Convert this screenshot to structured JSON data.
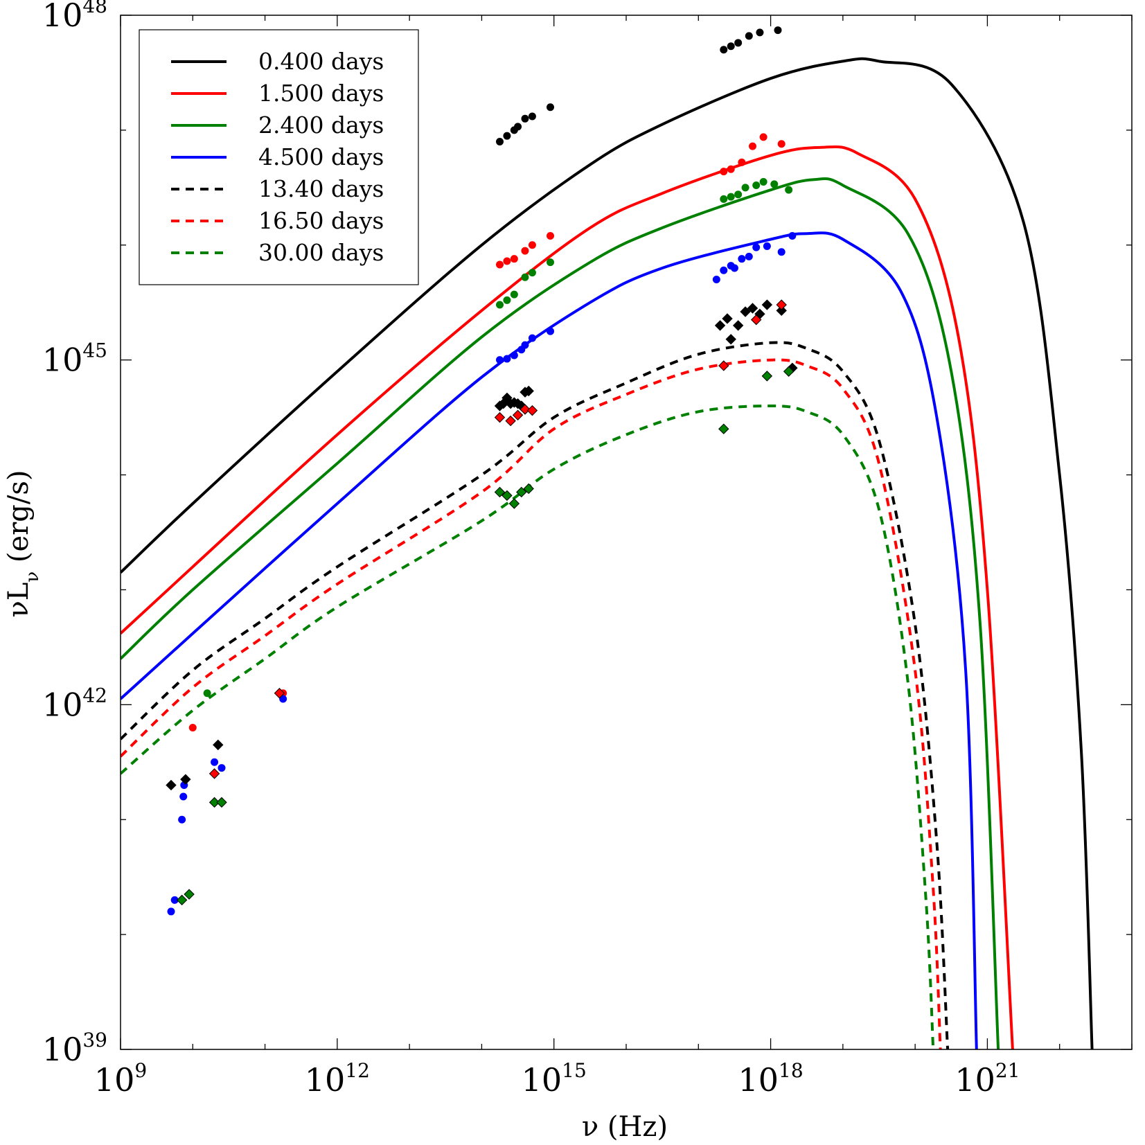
{
  "chart_data": {
    "type": "line",
    "title": "",
    "xlabel": "ν (Hz)",
    "ylabel": "νL_ν (erg/s)",
    "xscale": "log",
    "yscale": "log",
    "xlim": [
      1000000000.0,
      1e+23
    ],
    "ylim": [
      1e+39,
      1e+48
    ],
    "x_ticks": [
      {
        "base": "10",
        "exp": "9",
        "value": 1000000000.0
      },
      {
        "base": "10",
        "exp": "12",
        "value": 1000000000000.0
      },
      {
        "base": "10",
        "exp": "15",
        "value": 1000000000000000.0
      },
      {
        "base": "10",
        "exp": "18",
        "value": 1e+18
      },
      {
        "base": "10",
        "exp": "21",
        "value": 1e+21
      }
    ],
    "y_ticks": [
      {
        "base": "10",
        "exp": "39",
        "value": 1e+39
      },
      {
        "base": "10",
        "exp": "42",
        "value": 1e+42
      },
      {
        "base": "10",
        "exp": "45",
        "value": 1e+45
      },
      {
        "base": "10",
        "exp": "48",
        "value": 1e+48
      }
    ],
    "grid": false,
    "legend_position": "top-left",
    "series": [
      {
        "name": "0.400 days",
        "color": "#000000",
        "dash": "solid",
        "model_log": [
          [
            9.0,
            43.15
          ],
          [
            10.0,
            43.75
          ],
          [
            12.0,
            44.9
          ],
          [
            14.0,
            46.0
          ],
          [
            15.5,
            46.7
          ],
          [
            16.5,
            47.05
          ],
          [
            18.0,
            47.45
          ],
          [
            19.0,
            47.6
          ],
          [
            19.5,
            47.6
          ],
          [
            20.5,
            47.4
          ],
          [
            21.5,
            46.2
          ],
          [
            22.0,
            44.0
          ],
          [
            22.3,
            41.6
          ],
          [
            22.45,
            39.0
          ]
        ],
        "points_log": [
          [
            14.25,
            46.9
          ],
          [
            14.35,
            46.95
          ],
          [
            14.45,
            47.0
          ],
          [
            14.5,
            47.03
          ],
          [
            14.6,
            47.1
          ],
          [
            14.7,
            47.12
          ],
          [
            14.95,
            47.2
          ],
          [
            17.35,
            47.7
          ],
          [
            17.45,
            47.73
          ],
          [
            17.55,
            47.76
          ],
          [
            17.7,
            47.82
          ],
          [
            17.85,
            47.85
          ],
          [
            18.1,
            47.87
          ]
        ],
        "point_shape": "circle"
      },
      {
        "name": "1.500 days",
        "color": "#ff0000",
        "dash": "solid",
        "model_log": [
          [
            9.0,
            42.62
          ],
          [
            10.0,
            43.2
          ],
          [
            12.0,
            44.35
          ],
          [
            14.0,
            45.43
          ],
          [
            15.5,
            46.15
          ],
          [
            16.5,
            46.45
          ],
          [
            18.0,
            46.78
          ],
          [
            18.7,
            46.85
          ],
          [
            19.2,
            46.8
          ],
          [
            20.0,
            46.4
          ],
          [
            20.6,
            45.2
          ],
          [
            21.0,
            43.0
          ],
          [
            21.35,
            39.0
          ]
        ],
        "points_log": [
          [
            14.25,
            45.83
          ],
          [
            14.35,
            45.86
          ],
          [
            14.45,
            45.88
          ],
          [
            14.6,
            45.95
          ],
          [
            14.7,
            46.0
          ],
          [
            14.95,
            46.08
          ],
          [
            17.35,
            46.64
          ],
          [
            17.45,
            46.66
          ],
          [
            17.6,
            46.72
          ],
          [
            17.75,
            46.86
          ],
          [
            17.9,
            46.94
          ],
          [
            18.15,
            46.88
          ],
          [
            10.0,
            41.8
          ],
          [
            11.25,
            42.1
          ]
        ],
        "point_shape": "circle"
      },
      {
        "name": "2.400 days",
        "color": "#008000",
        "dash": "solid",
        "model_log": [
          [
            9.0,
            42.4
          ],
          [
            10.0,
            43.0
          ],
          [
            12.0,
            44.1
          ],
          [
            14.0,
            45.2
          ],
          [
            15.5,
            45.85
          ],
          [
            16.5,
            46.15
          ],
          [
            18.0,
            46.48
          ],
          [
            18.6,
            46.57
          ],
          [
            19.0,
            46.52
          ],
          [
            19.9,
            46.1
          ],
          [
            20.5,
            44.9
          ],
          [
            20.9,
            42.7
          ],
          [
            21.15,
            39.0
          ]
        ],
        "points_log": [
          [
            14.25,
            45.48
          ],
          [
            14.35,
            45.52
          ],
          [
            14.45,
            45.57
          ],
          [
            14.6,
            45.72
          ],
          [
            14.7,
            45.76
          ],
          [
            14.95,
            45.85
          ],
          [
            17.35,
            46.4
          ],
          [
            17.45,
            46.42
          ],
          [
            17.55,
            46.44
          ],
          [
            17.65,
            46.5
          ],
          [
            17.8,
            46.52
          ],
          [
            17.9,
            46.55
          ],
          [
            18.05,
            46.53
          ],
          [
            18.25,
            46.48
          ],
          [
            10.2,
            42.1
          ]
        ],
        "point_shape": "circle"
      },
      {
        "name": "4.500 days",
        "color": "#0000ff",
        "dash": "solid",
        "model_log": [
          [
            9.0,
            42.05
          ],
          [
            10.0,
            42.62
          ],
          [
            12.0,
            43.75
          ],
          [
            14.0,
            44.85
          ],
          [
            15.5,
            45.5
          ],
          [
            16.5,
            45.8
          ],
          [
            18.0,
            46.05
          ],
          [
            18.5,
            46.1
          ],
          [
            19.0,
            46.05
          ],
          [
            19.8,
            45.6
          ],
          [
            20.3,
            44.5
          ],
          [
            20.7,
            42.3
          ],
          [
            20.85,
            39.0
          ]
        ],
        "points_log": [
          [
            9.7,
            40.2
          ],
          [
            9.75,
            40.3
          ],
          [
            9.85,
            41.0
          ],
          [
            9.87,
            41.2
          ],
          [
            9.88,
            41.3
          ],
          [
            10.3,
            41.5
          ],
          [
            10.4,
            41.45
          ],
          [
            14.25,
            45.0
          ],
          [
            14.35,
            45.01
          ],
          [
            14.45,
            45.04
          ],
          [
            14.55,
            45.09
          ],
          [
            14.6,
            45.13
          ],
          [
            14.7,
            45.19
          ],
          [
            14.95,
            45.25
          ],
          [
            17.25,
            45.7
          ],
          [
            17.35,
            45.78
          ],
          [
            17.45,
            45.82
          ],
          [
            17.5,
            45.8
          ],
          [
            17.6,
            45.88
          ],
          [
            17.7,
            45.9
          ],
          [
            17.8,
            45.98
          ],
          [
            17.95,
            45.99
          ],
          [
            18.15,
            45.94
          ],
          [
            18.3,
            46.08
          ],
          [
            11.25,
            42.05
          ]
        ],
        "point_shape": "circle"
      },
      {
        "name": "13.40 days",
        "color": "#000000",
        "dash": "dashed",
        "model_log": [
          [
            9.0,
            41.7
          ],
          [
            10.0,
            42.3
          ],
          [
            11.0,
            42.75
          ],
          [
            12.0,
            43.2
          ],
          [
            14.0,
            44.0
          ],
          [
            15.0,
            44.5
          ],
          [
            16.0,
            44.8
          ],
          [
            17.0,
            45.05
          ],
          [
            18.0,
            45.15
          ],
          [
            18.5,
            45.1
          ],
          [
            19.0,
            44.9
          ],
          [
            19.5,
            44.3
          ],
          [
            20.0,
            42.7
          ],
          [
            20.3,
            40.8
          ],
          [
            20.45,
            39.0
          ]
        ],
        "points_log": [
          [
            9.7,
            41.3
          ],
          [
            9.9,
            41.35
          ],
          [
            10.35,
            41.65
          ],
          [
            14.25,
            44.6
          ],
          [
            14.3,
            44.62
          ],
          [
            14.35,
            44.67
          ],
          [
            14.4,
            44.62
          ],
          [
            14.45,
            44.63
          ],
          [
            14.5,
            44.62
          ],
          [
            14.55,
            44.6
          ],
          [
            14.6,
            44.72
          ],
          [
            14.65,
            44.73
          ],
          [
            17.3,
            45.3
          ],
          [
            17.4,
            45.36
          ],
          [
            17.45,
            45.18
          ],
          [
            17.55,
            45.3
          ],
          [
            17.65,
            45.42
          ],
          [
            17.75,
            45.45
          ],
          [
            17.85,
            45.4
          ],
          [
            17.95,
            45.48
          ],
          [
            18.15,
            45.43
          ],
          [
            18.3,
            44.93
          ]
        ],
        "point_shape": "diamond"
      },
      {
        "name": "16.50 days",
        "color": "#ff0000",
        "dash": "dashed",
        "model_log": [
          [
            9.0,
            41.55
          ],
          [
            10.0,
            42.15
          ],
          [
            11.0,
            42.6
          ],
          [
            12.0,
            43.05
          ],
          [
            14.0,
            43.85
          ],
          [
            15.0,
            44.4
          ],
          [
            16.0,
            44.7
          ],
          [
            17.0,
            44.92
          ],
          [
            18.0,
            45.0
          ],
          [
            18.5,
            44.95
          ],
          [
            19.0,
            44.75
          ],
          [
            19.5,
            44.1
          ],
          [
            20.0,
            42.3
          ],
          [
            20.25,
            40.4
          ],
          [
            20.35,
            39.0
          ]
        ],
        "points_log": [
          [
            10.3,
            41.4
          ],
          [
            11.2,
            42.1
          ],
          [
            14.25,
            44.5
          ],
          [
            14.4,
            44.47
          ],
          [
            14.5,
            44.52
          ],
          [
            14.6,
            44.57
          ],
          [
            14.7,
            44.56
          ],
          [
            17.35,
            44.95
          ],
          [
            17.8,
            45.35
          ],
          [
            18.15,
            45.48
          ]
        ],
        "point_shape": "diamond"
      },
      {
        "name": "30.00 days",
        "color": "#008000",
        "dash": "dashed",
        "model_log": [
          [
            9.0,
            41.4
          ],
          [
            10.0,
            41.95
          ],
          [
            11.0,
            42.4
          ],
          [
            12.0,
            42.85
          ],
          [
            14.0,
            43.6
          ],
          [
            15.0,
            44.05
          ],
          [
            16.0,
            44.35
          ],
          [
            17.0,
            44.55
          ],
          [
            18.0,
            44.6
          ],
          [
            18.5,
            44.55
          ],
          [
            19.0,
            44.35
          ],
          [
            19.5,
            43.7
          ],
          [
            19.9,
            42.2
          ],
          [
            20.15,
            40.3
          ],
          [
            20.25,
            39.0
          ]
        ],
        "points_log": [
          [
            9.85,
            40.3
          ],
          [
            9.95,
            40.35
          ],
          [
            10.3,
            41.15
          ],
          [
            10.4,
            41.15
          ],
          [
            14.25,
            43.85
          ],
          [
            14.35,
            43.82
          ],
          [
            14.45,
            43.75
          ],
          [
            14.55,
            43.85
          ],
          [
            14.65,
            43.88
          ],
          [
            17.35,
            44.4
          ],
          [
            17.95,
            44.86
          ],
          [
            18.25,
            44.9
          ]
        ],
        "point_shape": "diamond"
      }
    ]
  }
}
